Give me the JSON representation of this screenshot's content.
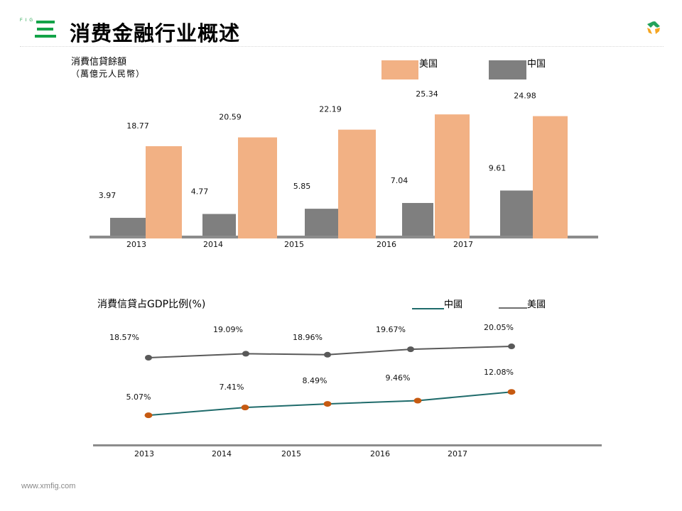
{
  "header": {
    "brand_text": "FIG",
    "title": "消费金融行业概述",
    "logo_icon": "xmfig-logo-icon"
  },
  "footer": {
    "url": "www.xmfig.com"
  },
  "colors": {
    "us_bar": "#f2b184",
    "china_bar": "#7f7f7f",
    "axis": "#8c8c8c",
    "china_line": "#1f6b6b",
    "china_marker": "#c65a11",
    "us_line": "#5a5a5a",
    "us_marker": "#595959",
    "brand_green": "#13a348"
  },
  "chart_data": [
    {
      "type": "bar",
      "title": "消費信貸餘額",
      "subtitle": "（萬億元人民幣）",
      "categories": [
        "2013",
        "2014",
        "2015",
        "2016",
        "2017"
      ],
      "series": [
        {
          "name": "中国",
          "values": [
            3.97,
            4.77,
            5.85,
            7.04,
            9.61
          ]
        },
        {
          "name": "美国",
          "values": [
            18.77,
            20.59,
            22.19,
            25.34,
            24.98
          ]
        }
      ],
      "legend": [
        {
          "name": "美国",
          "color": "#f2b184"
        },
        {
          "name": "中国",
          "color": "#7f7f7f"
        }
      ],
      "legend_position": "top-right",
      "xlabel": "",
      "ylabel": "",
      "ylim": [
        0,
        30
      ],
      "grid": false
    },
    {
      "type": "line",
      "title": "消費信貸占GDP比例(%)",
      "categories": [
        "2013",
        "2014",
        "2015",
        "2016",
        "2017"
      ],
      "series": [
        {
          "name": "中國",
          "values": [
            5.07,
            7.41,
            8.49,
            9.46,
            12.08
          ],
          "labels": [
            "5.07%",
            "7.41%",
            "8.49%",
            "9.46%",
            "12.08%"
          ]
        },
        {
          "name": "美國",
          "values": [
            18.57,
            19.09,
            18.96,
            19.67,
            20.05
          ],
          "labels": [
            "18.57%",
            "19.09%",
            "18.96%",
            "19.67%",
            "20.05%"
          ]
        }
      ],
      "legend": [
        {
          "name": "中國",
          "color": "#1f6b6b"
        },
        {
          "name": "美國",
          "color": "#6e6e6e"
        }
      ],
      "legend_position": "top-right",
      "xlabel": "",
      "ylabel": "",
      "grid": false
    }
  ]
}
